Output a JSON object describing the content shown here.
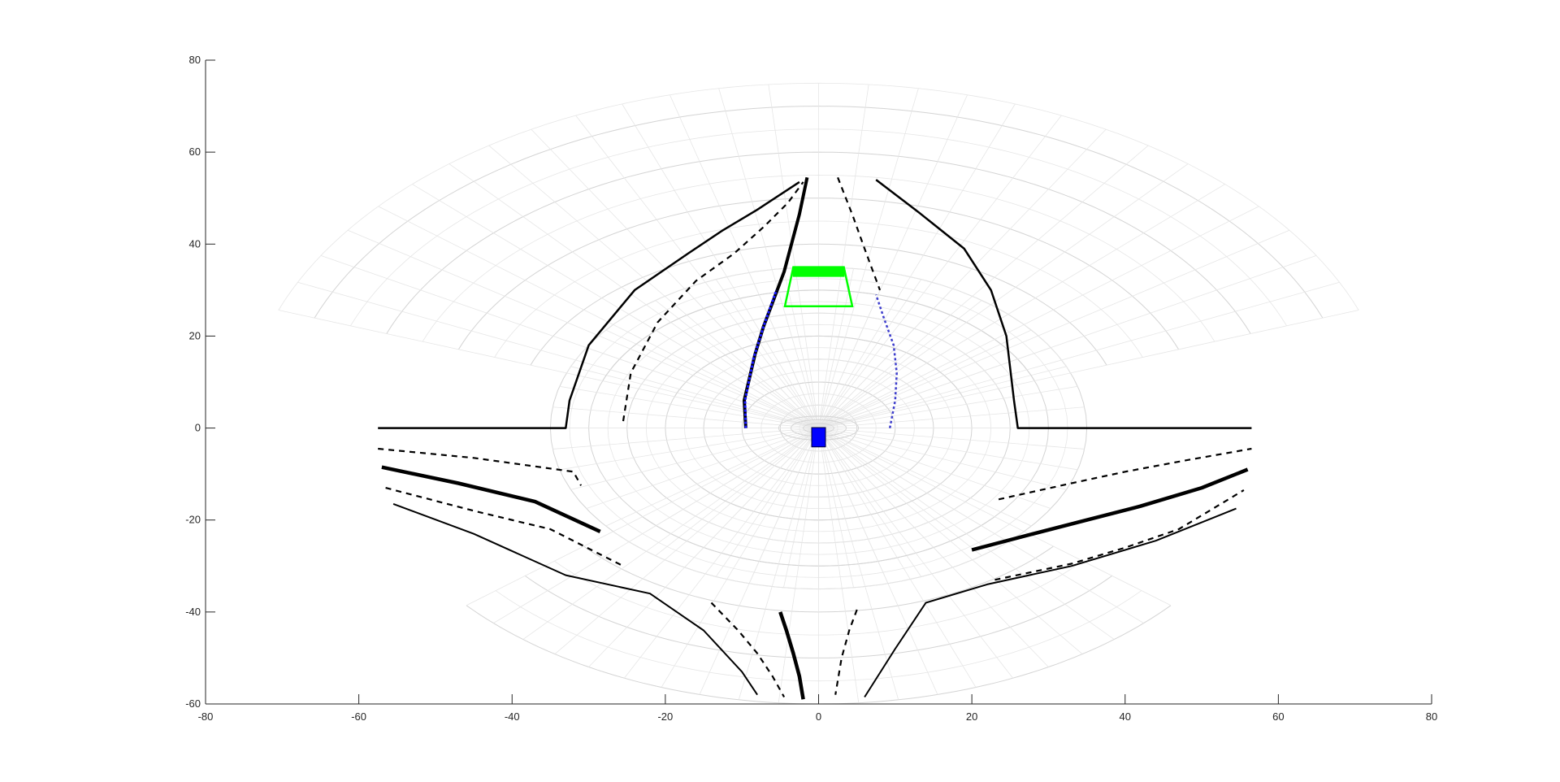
{
  "chart_data": {
    "type": "line",
    "title": "",
    "xlabel": "",
    "ylabel": "",
    "xlim": [
      -80,
      80
    ],
    "ylim": [
      -60,
      80
    ],
    "xticks": [
      -80,
      -60,
      -40,
      -20,
      0,
      20,
      40,
      60,
      80
    ],
    "yticks": [
      -60,
      -40,
      -20,
      0,
      20,
      40,
      60,
      80
    ],
    "grid": false,
    "colors": {
      "road": "#000000",
      "detected_lane": "#1a1aff",
      "detected_dash": "#3d3dcc",
      "vehicle": "#00ff00",
      "ego": "#0000ff",
      "coverage_grid": "#d4d4d4"
    },
    "coverage": {
      "front": {
        "radius": 75,
        "angle_min_deg": 20,
        "angle_max_deg": 160
      },
      "near": {
        "radius": 35,
        "angle_min_deg": -90,
        "angle_max_deg": 270
      },
      "rear": {
        "radius": 60,
        "angle_min_deg": 220,
        "angle_max_deg": 320
      }
    },
    "series": [
      {
        "style": "solid",
        "width": 2.5,
        "points": [
          [
            -57.5,
            0
          ],
          [
            -33,
            0
          ],
          [
            -32.5,
            6
          ],
          [
            -30,
            18
          ],
          [
            -24,
            30
          ],
          [
            -17,
            38
          ],
          [
            -12.5,
            43
          ],
          [
            -8,
            47.5
          ],
          [
            -2.5,
            53.5
          ]
        ]
      },
      {
        "style": "dashed",
        "width": 2.2,
        "points": [
          [
            -25.5,
            1.5
          ],
          [
            -24.5,
            12
          ],
          [
            -21,
            23
          ],
          [
            -16,
            32
          ],
          [
            -11,
            38
          ],
          [
            -7,
            44
          ],
          [
            -4,
            49
          ],
          [
            -2,
            53.5
          ]
        ]
      },
      {
        "style": "solid",
        "width": 4,
        "points": [
          [
            -9.5,
            0
          ],
          [
            -9.7,
            6
          ],
          [
            -8.3,
            16
          ],
          [
            -7.2,
            22
          ],
          [
            -4.5,
            34
          ],
          [
            -2.5,
            46.5
          ],
          [
            -1.5,
            54.5
          ]
        ]
      },
      {
        "style": "dashed",
        "width": 2.2,
        "points": [
          [
            2.5,
            54.5
          ],
          [
            4.5,
            46
          ],
          [
            6,
            39
          ],
          [
            8,
            30
          ]
        ]
      },
      {
        "style": "solid",
        "width": 2.5,
        "points": [
          [
            7.5,
            54
          ],
          [
            13,
            47
          ],
          [
            19,
            39
          ],
          [
            22.5,
            30
          ],
          [
            24.5,
            20
          ],
          [
            25.5,
            6
          ],
          [
            26,
            0
          ],
          [
            56.5,
            0
          ]
        ]
      },
      {
        "style": "dashed",
        "width": 2.2,
        "points": [
          [
            -57.5,
            -4.5
          ],
          [
            -45,
            -6.5
          ],
          [
            -32,
            -9.5
          ],
          [
            -31,
            -12.5
          ]
        ]
      },
      {
        "style": "solid",
        "width": 4.5,
        "points": [
          [
            -57,
            -8.5
          ],
          [
            -47,
            -12
          ],
          [
            -37,
            -16
          ],
          [
            -28.5,
            -22.5
          ]
        ]
      },
      {
        "style": "dashed",
        "width": 2.2,
        "points": [
          [
            -56.5,
            -13
          ],
          [
            -45,
            -18
          ],
          [
            -35,
            -22
          ],
          [
            -25.5,
            -30
          ]
        ]
      },
      {
        "style": "solid",
        "width": 2,
        "points": [
          [
            -55.5,
            -16.5
          ],
          [
            -45,
            -23
          ],
          [
            -33,
            -32
          ],
          [
            -22,
            -36
          ],
          [
            -15,
            -44
          ],
          [
            -10,
            -53
          ],
          [
            -8,
            -58
          ]
        ]
      },
      {
        "style": "dashed",
        "width": 2.2,
        "points": [
          [
            -14,
            -38
          ],
          [
            -10.5,
            -44
          ],
          [
            -8,
            -49
          ],
          [
            -6,
            -54
          ],
          [
            -4.5,
            -58.5
          ]
        ]
      },
      {
        "style": "solid",
        "width": 4.5,
        "points": [
          [
            -5,
            -40
          ],
          [
            -4.2,
            -44
          ],
          [
            -3.3,
            -49
          ],
          [
            -2.5,
            -54
          ],
          [
            -2,
            -59
          ]
        ]
      },
      {
        "style": "dashed",
        "width": 2.2,
        "points": [
          [
            5,
            -39.5
          ],
          [
            4,
            -44
          ],
          [
            3,
            -50
          ],
          [
            2.2,
            -58
          ]
        ]
      },
      {
        "style": "solid",
        "width": 2,
        "points": [
          [
            6,
            -58.5
          ],
          [
            10,
            -48
          ],
          [
            14,
            -38
          ],
          [
            22,
            -34
          ],
          [
            33,
            -30
          ],
          [
            44,
            -24.5
          ],
          [
            54.5,
            -17.5
          ]
        ]
      },
      {
        "style": "dashed",
        "width": 2.2,
        "points": [
          [
            23,
            -33
          ],
          [
            33,
            -29.5
          ],
          [
            40,
            -26
          ],
          [
            47,
            -22
          ],
          [
            55.5,
            -13.5
          ]
        ]
      },
      {
        "style": "solid",
        "width": 4.5,
        "points": [
          [
            20,
            -26.5
          ],
          [
            28,
            -23
          ],
          [
            35,
            -20
          ],
          [
            42,
            -17
          ],
          [
            50,
            -13
          ],
          [
            56,
            -9
          ]
        ]
      },
      {
        "style": "dashed",
        "width": 2.2,
        "points": [
          [
            23.5,
            -15.5
          ],
          [
            33,
            -12
          ],
          [
            40,
            -9.5
          ],
          [
            48,
            -7
          ],
          [
            56.5,
            -4.5
          ]
        ]
      },
      {
        "style": "solid-blue",
        "width": 3,
        "points": [
          [
            -9.5,
            0
          ],
          [
            -9.6,
            6
          ],
          [
            -8.5,
            15
          ],
          [
            -7.2,
            22
          ],
          [
            -5.5,
            30
          ]
        ]
      },
      {
        "style": "dotted-blue",
        "width": 2.5,
        "points": [
          [
            9.3,
            0
          ],
          [
            10,
            6
          ],
          [
            10.2,
            12
          ],
          [
            9.8,
            18
          ],
          [
            8.5,
            24
          ],
          [
            7.5,
            29
          ]
        ]
      }
    ],
    "vehicle": {
      "near_y": 26.5,
      "far_y": 35,
      "near_halfwidth": 4.4,
      "far_halfwidth": 3.3,
      "rear_band": 2
    },
    "ego": {
      "x": 0,
      "y": -2,
      "width": 1.8,
      "height": 4.2
    }
  }
}
